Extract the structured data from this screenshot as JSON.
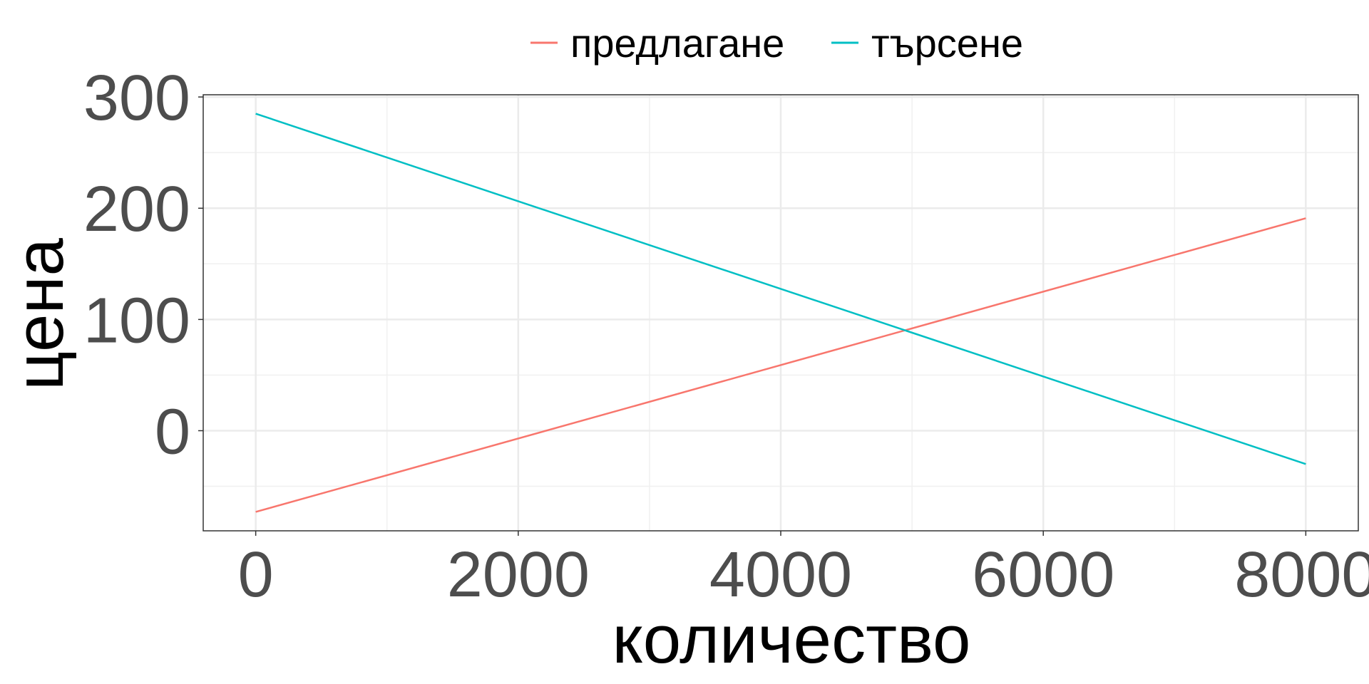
{
  "chart_data": {
    "type": "line",
    "xlabel": "количество",
    "ylabel": "цена",
    "xlim": [
      -400,
      8400
    ],
    "ylim": [
      -90,
      302
    ],
    "xticks": [
      0,
      2000,
      4000,
      6000,
      8000
    ],
    "xtick_labels": [
      "0",
      "2000",
      "4000",
      "6000",
      "8000"
    ],
    "yticks": [
      0,
      100,
      200,
      300
    ],
    "ytick_labels": [
      "0",
      "100",
      "200",
      "300"
    ],
    "grid": true,
    "legend_position": "top",
    "series": [
      {
        "name": "предлагане",
        "color": "#F8766D",
        "x": [
          0,
          8000
        ],
        "y": [
          -73,
          191
        ]
      },
      {
        "name": "търсене",
        "color": "#00BFC4",
        "x": [
          0,
          8000
        ],
        "y": [
          285,
          -30
        ]
      }
    ]
  }
}
